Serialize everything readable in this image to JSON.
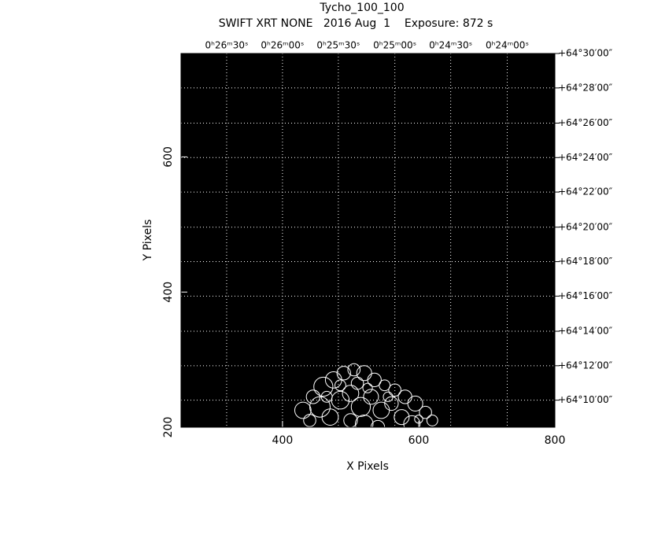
{
  "chart_data": {
    "type": "scatter",
    "title": "Tycho_100_100",
    "subtitle": "SWIFT XRT NONE   2016 Aug  1    Exposure: 872 s",
    "x_label": "X Pixels",
    "y_label": "Y Pixels",
    "xlim": [
      251,
      800
    ],
    "ylim": [
      200,
      753
    ],
    "xticks": [
      400,
      600,
      800
    ],
    "yticks": [
      200,
      400,
      600
    ],
    "x2ticks": [
      {
        "value": 318,
        "label": "0ʰ26ᵐ30ˢ"
      },
      {
        "value": 400,
        "label": "0ʰ26ᵐ00ˢ"
      },
      {
        "value": 482,
        "label": "0ʰ25ᵐ30ˢ"
      },
      {
        "value": 565,
        "label": "0ʰ25ᵐ00ˢ"
      },
      {
        "value": 647,
        "label": "0ʰ24ᵐ30ˢ"
      },
      {
        "value": 730,
        "label": "0ʰ24ᵐ00ˢ"
      }
    ],
    "y2ticks": [
      {
        "value": 240,
        "label": "+64°10′00″"
      },
      {
        "value": 291,
        "label": "+64°12′00″"
      },
      {
        "value": 342,
        "label": "+64°14′00″"
      },
      {
        "value": 394,
        "label": "+64°16′00″"
      },
      {
        "value": 445,
        "label": "+64°18′00″"
      },
      {
        "value": 496,
        "label": "+64°20′00″"
      },
      {
        "value": 548,
        "label": "+64°22′00″"
      },
      {
        "value": 599,
        "label": "+64°24′00″"
      },
      {
        "value": 650,
        "label": "+64°26′00″"
      },
      {
        "value": 702,
        "label": "+64°28′00″"
      },
      {
        "value": 753,
        "label": "+64°30′00″"
      }
    ],
    "grid": true,
    "background": "#000000",
    "color": "#ffffff",
    "x": [
      430,
      445,
      460,
      475,
      490,
      505,
      520,
      535,
      550,
      565,
      580,
      595,
      610,
      620,
      455,
      470,
      485,
      500,
      515,
      530,
      545,
      560,
      575,
      590,
      500,
      520,
      540,
      485,
      510,
      555,
      440,
      465,
      525,
      600
    ],
    "y": [
      225,
      245,
      260,
      270,
      280,
      285,
      280,
      270,
      262,
      255,
      245,
      235,
      222,
      210,
      230,
      215,
      240,
      250,
      230,
      245,
      225,
      235,
      215,
      205,
      210,
      205,
      200,
      262,
      265,
      245,
      210,
      245,
      258,
      212
    ],
    "sizes": [
      12,
      10,
      14,
      12,
      10,
      9,
      11,
      10,
      8,
      9,
      10,
      11,
      9,
      8,
      15,
      12,
      13,
      12,
      14,
      11,
      12,
      10,
      11,
      12,
      10,
      13,
      10,
      8,
      9,
      7,
      9,
      8,
      7,
      6
    ]
  }
}
